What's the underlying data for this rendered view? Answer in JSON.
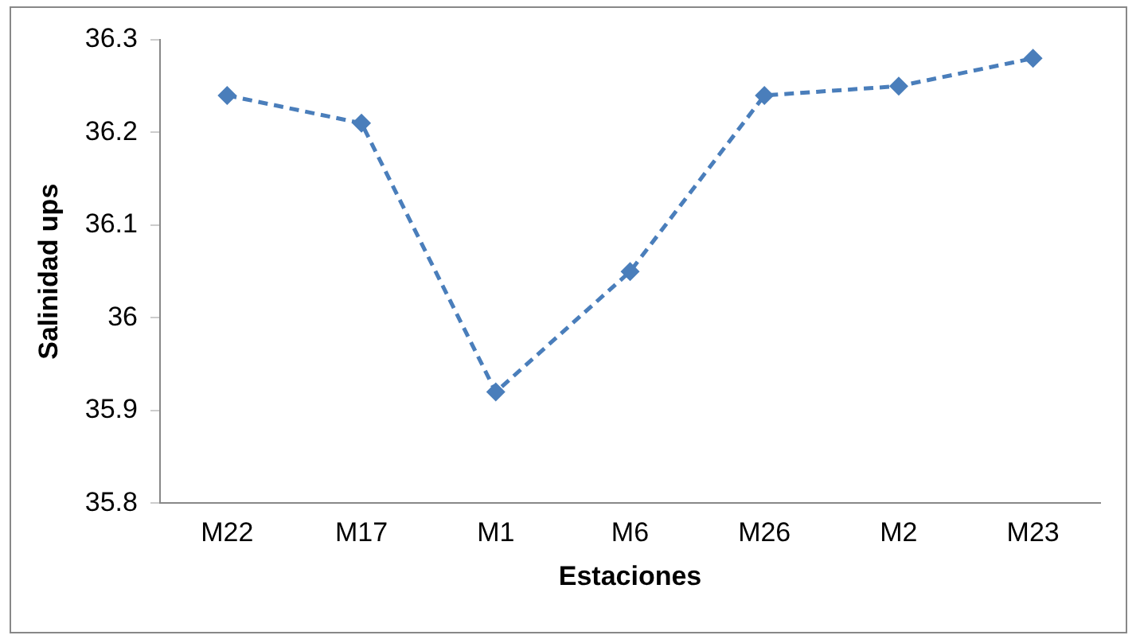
{
  "chart_data": {
    "type": "line",
    "xlabel": "Estaciones",
    "ylabel": "Salinidad ups",
    "categories": [
      "M22",
      "M17",
      "M1",
      "M6",
      "M26",
      "M2",
      "M23"
    ],
    "series": [
      {
        "color": "#4a7ebb",
        "values": [
          36.24,
          36.21,
          35.92,
          36.05,
          36.24,
          36.25,
          36.28
        ]
      }
    ],
    "ylim": [
      35.8,
      36.3
    ],
    "yticks": [
      35.8,
      35.9,
      36,
      36.1,
      36.2,
      36.3
    ],
    "grid": false,
    "legend": false,
    "marker": "diamond",
    "line_style": "dashed"
  }
}
